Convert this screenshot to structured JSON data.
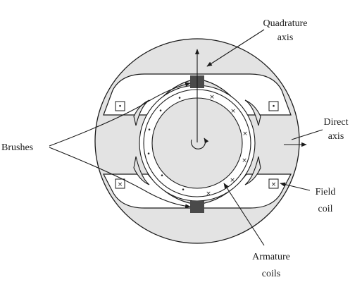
{
  "labels": {
    "quadrature_line1": "Quadrature",
    "quadrature_line2": "axis",
    "direct_line1": "Direct",
    "direct_line2": "axis",
    "brushes": "Brushes",
    "field_line1": "Field",
    "field_line2": "coil",
    "armature_line1": "Armature",
    "armature_line2": "coils"
  },
  "symbols": {
    "dot": "•",
    "cross": "×"
  },
  "colors": {
    "body_fill": "#e3e3e3",
    "background": "#ffffff",
    "outline": "#1a1a1a",
    "brush": "#4a4a4a"
  }
}
